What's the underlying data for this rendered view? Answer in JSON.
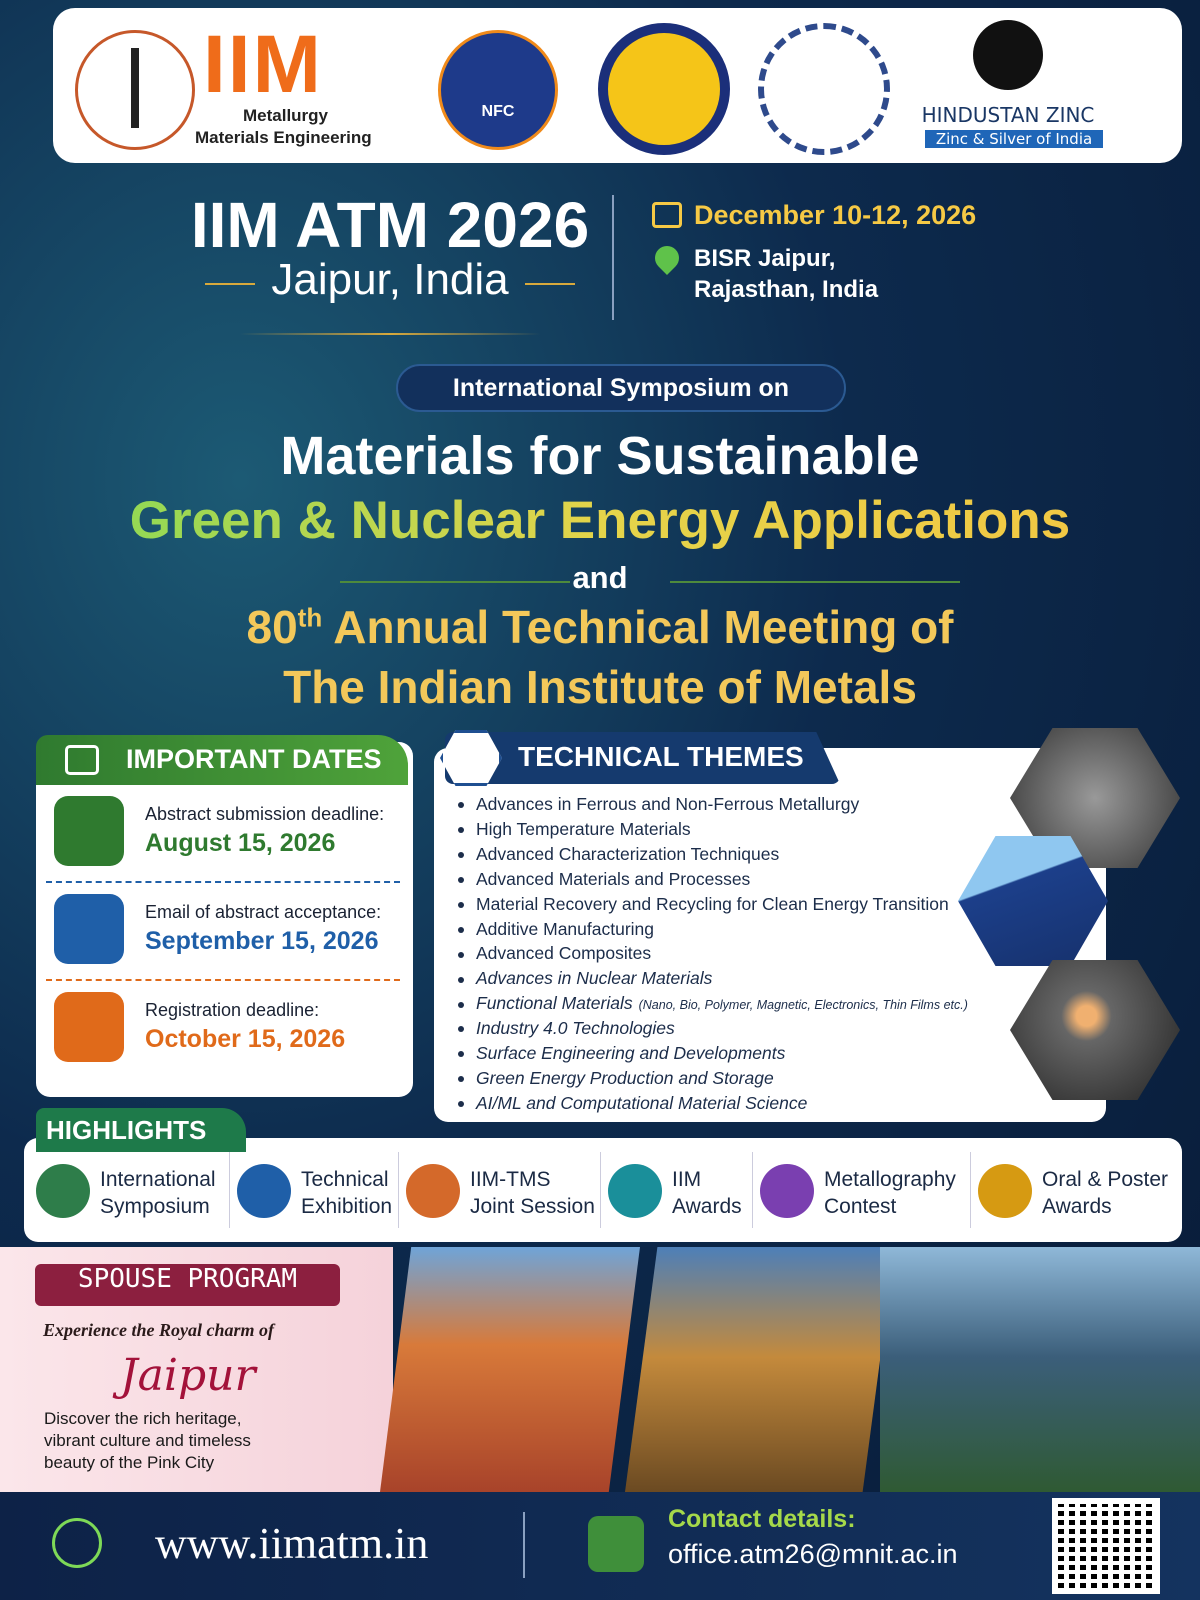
{
  "logos": {
    "iim": {
      "name": "IIM",
      "line1": "Metallurgy",
      "line2": "Materials Engineering"
    },
    "nfc": {
      "name": "NFC"
    },
    "hindustan_zinc": {
      "name": "HINDUSTAN ZINC",
      "tagline": "Zinc & Silver of India"
    }
  },
  "event": {
    "title": "IIM ATM 2026",
    "location": "Jaipur, India",
    "date": "December 10-12, 2026",
    "venue_line1": "BISR Jaipur,",
    "venue_line2": "Rajasthan, India"
  },
  "symposium": {
    "label": "International Symposium on",
    "title_line1": "Materials for Sustainable",
    "title_line2": "Green & Nuclear Energy Applications",
    "connector": "and",
    "meeting_number": "80",
    "meeting_suffix": "th",
    "meeting_line1": "Annual Technical Meeting of",
    "meeting_line2": "The Indian Institute of Metals"
  },
  "important_dates": {
    "heading": "IMPORTANT DATES",
    "items": [
      {
        "label": "Abstract submission deadline:",
        "date": "August 15, 2026"
      },
      {
        "label": "Email of abstract acceptance:",
        "date": "September 15, 2026"
      },
      {
        "label": "Registration deadline:",
        "date": "October 15, 2026"
      }
    ]
  },
  "technical_themes": {
    "heading": "TECHNICAL THEMES",
    "items": [
      {
        "text": "Advances in Ferrous and Non-Ferrous Metallurgy"
      },
      {
        "text": "High Temperature Materials"
      },
      {
        "text": "Advanced Characterization Techniques"
      },
      {
        "text": "Advanced Materials and Processes"
      },
      {
        "text": "Material Recovery and Recycling for Clean Energy Transition"
      },
      {
        "text": "Additive Manufacturing"
      },
      {
        "text": "Advanced Composites"
      },
      {
        "text": "Advances in Nuclear Materials"
      },
      {
        "text": "Functional Materials",
        "detail": "(Nano, Bio, Polymer, Magnetic, Electronics, Thin Films etc.)"
      },
      {
        "text": "Industry 4.0 Technologies"
      },
      {
        "text": "Surface Engineering and Developments"
      },
      {
        "text": "Green Energy Production and Storage"
      },
      {
        "text": "AI/ML and Computational Material Science"
      }
    ]
  },
  "highlights": {
    "heading": "HIGHLIGHTS",
    "items": [
      {
        "line1": "International",
        "line2": "Symposium"
      },
      {
        "line1": "Technical",
        "line2": "Exhibition"
      },
      {
        "line1": "IIM-TMS",
        "line2": "Joint Session"
      },
      {
        "line1": "IIM",
        "line2": "Awards"
      },
      {
        "line1": "Metallography",
        "line2": "Contest"
      },
      {
        "line1": "Oral & Poster",
        "line2": "Awards"
      }
    ]
  },
  "spouse_program": {
    "heading": "SPOUSE PROGRAM",
    "tagline": "Experience the Royal charm of",
    "city": "Jaipur",
    "description": "Discover the rich heritage, vibrant culture and timeless beauty of the Pink City"
  },
  "footer": {
    "website": "www.iimatm.in",
    "contact_label": "Contact details:",
    "email": "office.atm26@mnit.ac.in"
  }
}
